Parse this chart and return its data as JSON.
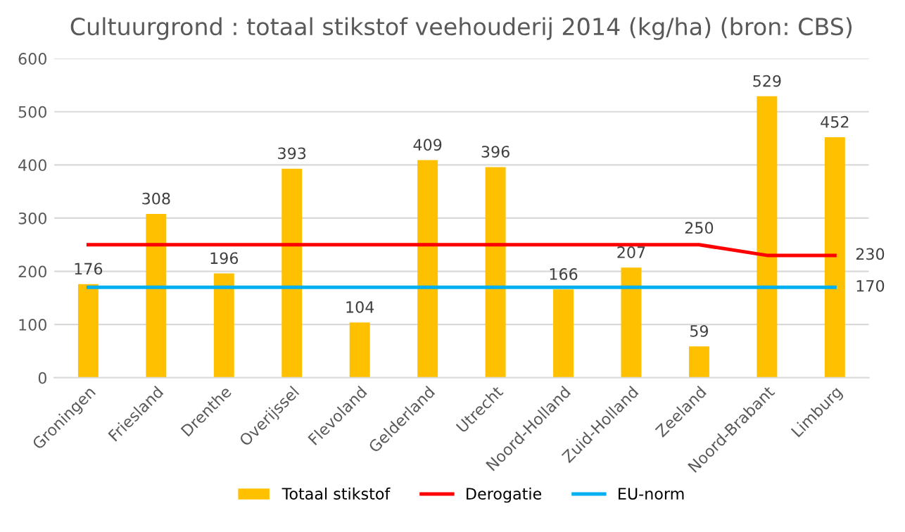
{
  "chart_data": {
    "type": "bar",
    "title": "Cultuurgrond : totaal stikstof veehouderij 2014 (kg/ha) (bron: CBS)",
    "categories": [
      "Groningen",
      "Friesland",
      "Drenthe",
      "Overijssel",
      "Flevoland",
      "Gelderland",
      "Utrecht",
      "Noord-Holland",
      "Zuid-Holland",
      "Zeeland",
      "Noord-Brabant",
      "Limburg"
    ],
    "series": [
      {
        "name": "Totaal stikstof",
        "color": "#ffc000",
        "values": [
          176,
          308,
          196,
          393,
          104,
          409,
          396,
          166,
          207,
          59,
          529,
          452
        ],
        "value_labels": [
          "176",
          "308",
          "196",
          "393",
          "104",
          "409",
          "396",
          "166",
          "207",
          "59",
          "529",
          "452"
        ]
      },
      {
        "name": "Derogatie",
        "type": "line",
        "color": "#ff0000",
        "values": [
          250,
          250,
          250,
          250,
          250,
          250,
          250,
          250,
          250,
          250,
          230,
          230
        ],
        "value_labels": [
          null,
          null,
          null,
          null,
          null,
          null,
          null,
          null,
          null,
          "250",
          null,
          "230"
        ]
      },
      {
        "name": "EU-norm",
        "type": "line",
        "color": "#00b0f0",
        "values": [
          170,
          170,
          170,
          170,
          170,
          170,
          170,
          170,
          170,
          170,
          170,
          170
        ],
        "value_labels": [
          null,
          null,
          null,
          null,
          null,
          null,
          null,
          null,
          null,
          null,
          null,
          "170"
        ]
      }
    ],
    "ylim": [
      0,
      600
    ],
    "yticks": [
      0,
      100,
      200,
      300,
      400,
      500,
      600
    ],
    "grid": "y",
    "legend": "bottom"
  }
}
